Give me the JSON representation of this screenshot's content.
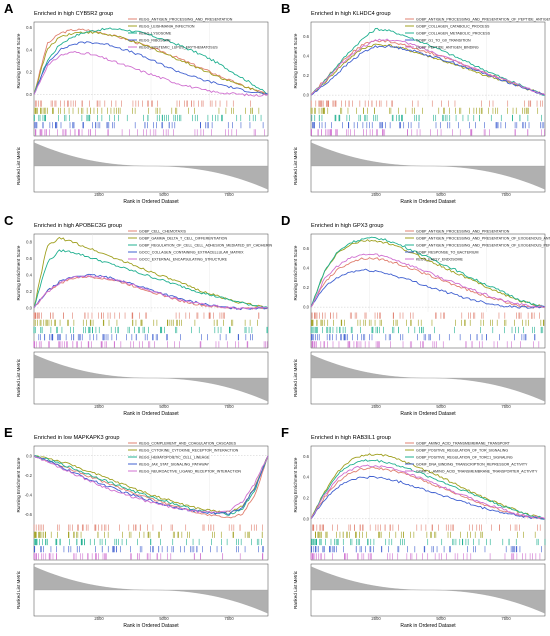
{
  "chart_data": [
    {
      "letter": "A",
      "type": "line",
      "title": "Enriched in high CYB5R2 group",
      "ylabel_top": "Running Enrichment Score",
      "ylabel_bottom": "Ranked List Metric",
      "xlabel": "Rank in Ordered Dataset",
      "yticks": [
        "0.6",
        "0.4",
        "0.2",
        "0.0"
      ],
      "ylim": [
        -0.05,
        0.65
      ],
      "xticks": [
        "2500",
        "5000",
        "7500"
      ],
      "xlim": [
        0,
        9000
      ],
      "x": [
        0,
        500,
        1000,
        1500,
        2000,
        2500,
        3000,
        3500,
        4000,
        4500,
        5000,
        5500,
        6000,
        6500,
        7000,
        7500,
        8000,
        8500,
        9000
      ],
      "series": [
        {
          "name": "KEGG_ANTIGEN_PROCESSING_AND_PRESENTATION",
          "color": "#e08070",
          "values": [
            0.0,
            0.45,
            0.55,
            0.58,
            0.58,
            0.56,
            0.53,
            0.5,
            0.46,
            0.42,
            0.38,
            0.33,
            0.28,
            0.23,
            0.18,
            0.13,
            0.08,
            0.04,
            0.0
          ]
        },
        {
          "name": "KEGG_LEISHMANIA_INFECTION",
          "color": "#a0a020",
          "values": [
            0.0,
            0.4,
            0.52,
            0.55,
            0.56,
            0.55,
            0.53,
            0.5,
            0.46,
            0.42,
            0.37,
            0.32,
            0.27,
            0.22,
            0.17,
            0.12,
            0.08,
            0.04,
            0.0
          ]
        },
        {
          "name": "KEGG_LYSOSOME",
          "color": "#20b090",
          "values": [
            0.0,
            0.3,
            0.45,
            0.52,
            0.56,
            0.58,
            0.59,
            0.58,
            0.56,
            0.53,
            0.49,
            0.45,
            0.4,
            0.35,
            0.29,
            0.22,
            0.15,
            0.08,
            0.0
          ]
        },
        {
          "name": "KEGG_RIBOSOME",
          "color": "#4060d0",
          "values": [
            0.0,
            0.28,
            0.4,
            0.45,
            0.47,
            0.46,
            0.44,
            0.4,
            0.36,
            0.31,
            0.26,
            0.21,
            0.17,
            0.13,
            0.1,
            0.07,
            0.04,
            0.02,
            0.0
          ]
        },
        {
          "name": "KEGG_SYSTEMIC_LUPUS_ERYTHEMATOSUS",
          "color": "#d070d0",
          "values": [
            0.0,
            0.25,
            0.35,
            0.38,
            0.37,
            0.34,
            0.3,
            0.26,
            0.22,
            0.18,
            0.14,
            0.1,
            0.07,
            0.04,
            0.02,
            0.01,
            0.0,
            -0.01,
            0.0
          ]
        }
      ]
    },
    {
      "letter": "B",
      "type": "line",
      "title": "Enriched in high KLHDC4 group",
      "ylabel_top": "Running Enrichment Score",
      "ylabel_bottom": "Ranked List Metric",
      "xlabel": "Rank in Ordered Dataset",
      "yticks": [
        "0.6",
        "0.4",
        "0.2",
        "0.0"
      ],
      "ylim": [
        -0.05,
        0.75
      ],
      "xticks": [
        "2500",
        "5000",
        "7500"
      ],
      "xlim": [
        0,
        9000
      ],
      "x": [
        0,
        500,
        1000,
        1500,
        2000,
        2500,
        3000,
        3500,
        4000,
        4500,
        5000,
        5500,
        6000,
        6500,
        7000,
        7500,
        8000,
        8500,
        9000
      ],
      "series": [
        {
          "name": "GOBP_ANTIGEN_PROCESSING_AND_PRESENTATION_OF_PEPTIDE_ANTIGEN",
          "color": "#e08070",
          "values": [
            0.0,
            0.15,
            0.3,
            0.42,
            0.52,
            0.56,
            0.55,
            0.52,
            0.48,
            0.44,
            0.4,
            0.35,
            0.3,
            0.25,
            0.2,
            0.15,
            0.1,
            0.05,
            0.0
          ]
        },
        {
          "name": "GOBP_COLLAGEN_CATABOLIC_PROCESS",
          "color": "#a0a020",
          "values": [
            0.0,
            0.12,
            0.26,
            0.38,
            0.48,
            0.52,
            0.51,
            0.48,
            0.44,
            0.4,
            0.36,
            0.31,
            0.27,
            0.22,
            0.18,
            0.14,
            0.09,
            0.05,
            0.0
          ]
        },
        {
          "name": "GOBP_COLLAGEN_METABOLIC_PROCESS",
          "color": "#20b090",
          "values": [
            0.0,
            0.14,
            0.3,
            0.45,
            0.58,
            0.68,
            0.66,
            0.62,
            0.57,
            0.52,
            0.46,
            0.4,
            0.34,
            0.28,
            0.22,
            0.16,
            0.11,
            0.05,
            0.0
          ]
        },
        {
          "name": "GOBP_G1_TO_G0_TRANSITION",
          "color": "#4060d0",
          "values": [
            0.0,
            0.1,
            0.22,
            0.34,
            0.44,
            0.5,
            0.5,
            0.48,
            0.45,
            0.41,
            0.37,
            0.33,
            0.28,
            0.24,
            0.19,
            0.14,
            0.09,
            0.05,
            0.0
          ]
        },
        {
          "name": "GOBP_PEPTIDE_ANTIGEN_BINDING",
          "color": "#d070d0",
          "values": [
            0.0,
            0.13,
            0.28,
            0.4,
            0.5,
            0.56,
            0.57,
            0.55,
            0.51,
            0.46,
            0.41,
            0.36,
            0.3,
            0.25,
            0.2,
            0.15,
            0.1,
            0.05,
            0.0
          ]
        }
      ]
    },
    {
      "letter": "C",
      "type": "line",
      "title": "Enriched in high APOBEC3G group",
      "ylabel_top": "Running Enrichment Score",
      "ylabel_bottom": "Ranked List Metric",
      "xlabel": "Rank in Ordered Dataset",
      "yticks": [
        "0.8",
        "0.6",
        "0.4",
        "0.2",
        "0.0"
      ],
      "ylim": [
        -0.05,
        0.9
      ],
      "xticks": [
        "2500",
        "5000",
        "7500"
      ],
      "xlim": [
        0,
        9000
      ],
      "x": [
        0,
        500,
        1000,
        1500,
        2000,
        2500,
        3000,
        3500,
        4000,
        4500,
        5000,
        5500,
        6000,
        6500,
        7000,
        7500,
        8000,
        8500,
        9000
      ],
      "series": [
        {
          "name": "GOBP_CELL_CHEMOTAXIS",
          "color": "#e08070",
          "values": [
            0.0,
            0.2,
            0.3,
            0.36,
            0.38,
            0.37,
            0.34,
            0.3,
            0.25,
            0.2,
            0.15,
            0.1,
            0.06,
            0.03,
            0.01,
            0.0,
            -0.01,
            0.0,
            0.0
          ]
        },
        {
          "name": "GOBP_GAMMA_DELTA_T_CELL_DIFFERENTIATION",
          "color": "#a0a020",
          "values": [
            0.0,
            0.75,
            0.85,
            0.8,
            0.74,
            0.68,
            0.62,
            0.56,
            0.5,
            0.44,
            0.38,
            0.32,
            0.26,
            0.2,
            0.15,
            0.1,
            0.06,
            0.03,
            0.0
          ]
        },
        {
          "name": "GOBP_REGULATION_OF_CELL_CELL_ADHESION_MEDIATED_BY_CADHERIN",
          "color": "#20b090",
          "values": [
            0.0,
            0.55,
            0.7,
            0.68,
            0.63,
            0.58,
            0.53,
            0.48,
            0.43,
            0.38,
            0.33,
            0.28,
            0.23,
            0.18,
            0.14,
            0.1,
            0.06,
            0.03,
            0.0
          ]
        },
        {
          "name": "GOCC_COLLAGEN_CONTAINING_EXTRACELLULAR_MATRIX",
          "color": "#4060d0",
          "values": [
            0.0,
            0.2,
            0.32,
            0.38,
            0.4,
            0.39,
            0.36,
            0.32,
            0.27,
            0.22,
            0.17,
            0.12,
            0.08,
            0.05,
            0.02,
            0.0,
            -0.01,
            0.0,
            0.0
          ]
        },
        {
          "name": "GOCC_EXTERNAL_ENCAPSULATING_STRUCTURE",
          "color": "#d070d0",
          "values": [
            0.0,
            0.19,
            0.31,
            0.37,
            0.39,
            0.38,
            0.35,
            0.31,
            0.26,
            0.21,
            0.16,
            0.11,
            0.07,
            0.04,
            0.02,
            0.0,
            -0.01,
            0.0,
            0.0
          ]
        }
      ]
    },
    {
      "letter": "D",
      "type": "line",
      "title": "Enriched in high GPX3 group",
      "ylabel_top": "Running Enrichment Score",
      "ylabel_bottom": "Ranked List Metric",
      "xlabel": "Rank in Ordered Dataset",
      "yticks": [
        "0.6",
        "0.4",
        "0.2",
        "0.0"
      ],
      "ylim": [
        -0.05,
        0.75
      ],
      "xticks": [
        "2500",
        "5000",
        "7500"
      ],
      "xlim": [
        0,
        9000
      ],
      "x": [
        0,
        500,
        1000,
        1500,
        2000,
        2500,
        3000,
        3500,
        4000,
        4500,
        5000,
        5500,
        6000,
        6500,
        7000,
        7500,
        8000,
        8500,
        9000
      ],
      "series": [
        {
          "name": "GOBP_ANTIGEN_PROCESSING_AND_PRESENTATION",
          "color": "#e08070",
          "values": [
            0.0,
            0.25,
            0.38,
            0.46,
            0.5,
            0.5,
            0.47,
            0.43,
            0.38,
            0.33,
            0.28,
            0.23,
            0.18,
            0.13,
            0.09,
            0.05,
            0.02,
            0.0,
            0.0
          ]
        },
        {
          "name": "GOBP_ANTIGEN_PROCESSING_AND_PRESENTATION_OF_EXOGENOUS_ANTIGEN",
          "color": "#a0a020",
          "values": [
            0.0,
            0.35,
            0.55,
            0.64,
            0.68,
            0.68,
            0.65,
            0.6,
            0.54,
            0.48,
            0.42,
            0.36,
            0.3,
            0.24,
            0.18,
            0.12,
            0.07,
            0.03,
            0.0
          ]
        },
        {
          "name": "GOBP_ANTIGEN_PROCESSING_AND_PRESENTATION_OF_EXOGENOUS_PEPTIDE_ANTIGEN",
          "color": "#20b090",
          "values": [
            0.0,
            0.36,
            0.56,
            0.66,
            0.7,
            0.71,
            0.68,
            0.63,
            0.57,
            0.51,
            0.45,
            0.39,
            0.32,
            0.26,
            0.2,
            0.14,
            0.08,
            0.03,
            0.0
          ]
        },
        {
          "name": "GOBP_RESPONSE_TO_BACTERIUM",
          "color": "#4060d0",
          "values": [
            0.0,
            0.2,
            0.3,
            0.36,
            0.38,
            0.37,
            0.34,
            0.3,
            0.26,
            0.21,
            0.17,
            0.13,
            0.09,
            0.06,
            0.03,
            0.01,
            0.0,
            0.0,
            0.0
          ]
        },
        {
          "name": "KEGG_EARLY_ENDOSOME",
          "color": "#d070d0",
          "values": [
            0.0,
            0.28,
            0.42,
            0.5,
            0.54,
            0.54,
            0.51,
            0.46,
            0.41,
            0.36,
            0.3,
            0.25,
            0.2,
            0.15,
            0.1,
            0.06,
            0.03,
            0.01,
            0.0
          ]
        }
      ]
    },
    {
      "letter": "E",
      "type": "line",
      "title": "Enriched in low MAPKAPK3 group",
      "ylabel_top": "Running Enrichment Score",
      "ylabel_bottom": "Ranked List Metric",
      "xlabel": "Rank in Ordered Dataset",
      "yticks": [
        "0.0",
        "-0.2",
        "-0.4",
        "-0.6"
      ],
      "ylim": [
        -0.7,
        0.1
      ],
      "xticks": [
        "2500",
        "5000",
        "7500"
      ],
      "xlim": [
        0,
        9000
      ],
      "x": [
        0,
        500,
        1000,
        1500,
        2000,
        2500,
        3000,
        3500,
        4000,
        4500,
        5000,
        5500,
        6000,
        6500,
        7000,
        7500,
        8000,
        8500,
        9000
      ],
      "series": [
        {
          "name": "KEGG_COMPLEMENT_AND_COAGULATION_CASCADES",
          "color": "#e08070",
          "values": [
            0.0,
            -0.05,
            -0.1,
            -0.15,
            -0.2,
            -0.25,
            -0.3,
            -0.35,
            -0.4,
            -0.44,
            -0.48,
            -0.52,
            -0.56,
            -0.6,
            -0.62,
            -0.64,
            -0.6,
            -0.4,
            0.0
          ]
        },
        {
          "name": "KEGG_CYTOKINE_CYTOKINE_RECEPTOR_INTERACTION",
          "color": "#a0a020",
          "values": [
            0.0,
            -0.02,
            -0.06,
            -0.1,
            -0.15,
            -0.2,
            -0.25,
            -0.3,
            -0.35,
            -0.4,
            -0.44,
            -0.48,
            -0.52,
            -0.55,
            -0.57,
            -0.58,
            -0.52,
            -0.32,
            0.0
          ]
        },
        {
          "name": "KEGG_HEMATOPOIETIC_CELL_LINEAGE",
          "color": "#20b090",
          "values": [
            0.0,
            -0.04,
            -0.08,
            -0.13,
            -0.18,
            -0.23,
            -0.28,
            -0.33,
            -0.38,
            -0.42,
            -0.46,
            -0.5,
            -0.54,
            -0.57,
            -0.59,
            -0.6,
            -0.55,
            -0.35,
            0.0
          ]
        },
        {
          "name": "KEGG_JAK_STAT_SIGNALING_PATHWAY",
          "color": "#4060d0",
          "values": [
            0.0,
            -0.05,
            -0.11,
            -0.17,
            -0.23,
            -0.28,
            -0.33,
            -0.38,
            -0.42,
            -0.46,
            -0.5,
            -0.53,
            -0.56,
            -0.58,
            -0.59,
            -0.59,
            -0.53,
            -0.33,
            0.0
          ]
        },
        {
          "name": "KEGG_NEUROACTIVE_LIGAND_RECEPTOR_INTERACTION",
          "color": "#d070d0",
          "values": [
            0.0,
            -0.06,
            -0.12,
            -0.18,
            -0.24,
            -0.3,
            -0.35,
            -0.4,
            -0.44,
            -0.48,
            -0.51,
            -0.54,
            -0.56,
            -0.58,
            -0.58,
            -0.56,
            -0.48,
            -0.28,
            0.0
          ]
        }
      ]
    },
    {
      "letter": "F",
      "type": "line",
      "title": "Enriched in high RAB3IL1 group",
      "ylabel_top": "Running Enrichment Score",
      "ylabel_bottom": "Ranked List Metric",
      "xlabel": "Rank in Ordered Dataset",
      "yticks": [
        "0.6",
        "0.4",
        "0.2",
        "0.0"
      ],
      "ylim": [
        -0.05,
        0.7
      ],
      "xticks": [
        "2500",
        "5000",
        "7500"
      ],
      "xlim": [
        0,
        9000
      ],
      "x": [
        0,
        500,
        1000,
        1500,
        2000,
        2500,
        3000,
        3500,
        4000,
        4500,
        5000,
        5500,
        6000,
        6500,
        7000,
        7500,
        8000,
        8500,
        9000
      ],
      "series": [
        {
          "name": "GOBP_AMINO_ACID_TRANSMEMBRANE_TRANSPORT",
          "color": "#e08070",
          "values": [
            0.0,
            0.2,
            0.35,
            0.44,
            0.48,
            0.49,
            0.47,
            0.44,
            0.4,
            0.35,
            0.3,
            0.25,
            0.2,
            0.15,
            0.11,
            0.07,
            0.04,
            0.01,
            0.0
          ]
        },
        {
          "name": "GOBP_POSITIVE_REGULATION_OF_TOR_SIGNALING",
          "color": "#a0a020",
          "values": [
            0.0,
            0.25,
            0.45,
            0.56,
            0.61,
            0.62,
            0.6,
            0.56,
            0.51,
            0.46,
            0.4,
            0.34,
            0.28,
            0.22,
            0.17,
            0.12,
            0.07,
            0.03,
            0.0
          ]
        },
        {
          "name": "GOBP_POSITIVE_REGULATION_OF_TORC1_SIGNALING",
          "color": "#20b090",
          "values": [
            0.0,
            0.24,
            0.42,
            0.52,
            0.56,
            0.56,
            0.54,
            0.5,
            0.46,
            0.41,
            0.36,
            0.31,
            0.26,
            0.21,
            0.16,
            0.11,
            0.07,
            0.03,
            0.0
          ]
        },
        {
          "name": "GOMF_DNA_BINDING_TRANSCRIPTION_REPRESSOR_ACTIVITY",
          "color": "#4060d0",
          "values": [
            0.0,
            0.18,
            0.3,
            0.37,
            0.4,
            0.4,
            0.38,
            0.35,
            0.31,
            0.27,
            0.23,
            0.19,
            0.15,
            0.11,
            0.08,
            0.05,
            0.03,
            0.01,
            0.0
          ]
        },
        {
          "name": "GOMF_L_AMINO_ACID_TRANSMEMBRANE_TRANSPORTER_ACTIVITY",
          "color": "#d070d0",
          "values": [
            0.0,
            0.22,
            0.38,
            0.47,
            0.51,
            0.51,
            0.49,
            0.45,
            0.41,
            0.36,
            0.31,
            0.26,
            0.21,
            0.16,
            0.12,
            0.08,
            0.04,
            0.02,
            0.0
          ]
        }
      ]
    }
  ]
}
